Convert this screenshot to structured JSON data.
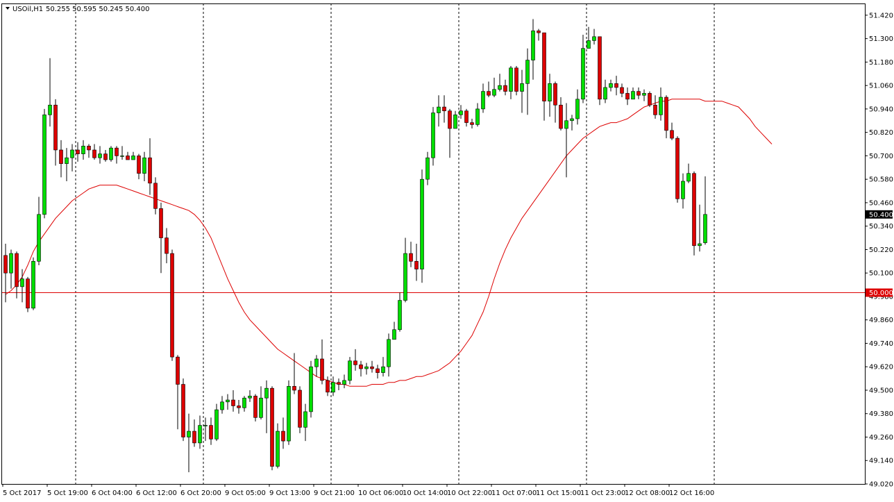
{
  "header": {
    "symbol": "USOil,H1",
    "ohlc": "50.255 50.595 50.245 50.400"
  },
  "colors": {
    "bull": "#00dd00",
    "bear": "#dd0000",
    "wick": "#000000",
    "ma": "#dd0000",
    "level": "#dd0000",
    "grid": "#000000",
    "background": "#ffffff"
  },
  "chart_data": {
    "type": "candlestick",
    "symbol": "USOil",
    "timeframe": "H1",
    "ylim": [
      49.02,
      51.48
    ],
    "price_ticks": [
      "51.420",
      "51.300",
      "51.180",
      "51.060",
      "50.940",
      "50.820",
      "50.700",
      "50.580",
      "50.460",
      "50.340",
      "50.220",
      "50.100",
      "49.980",
      "49.860",
      "49.740",
      "49.620",
      "49.500",
      "49.380",
      "49.260",
      "49.140",
      "49.020"
    ],
    "time_labels": [
      "5 Oct 2017",
      "5 Oct 19:00",
      "6 Oct 04:00",
      "6 Oct 12:00",
      "6 Oct 20:00",
      "9 Oct 05:00",
      "9 Oct 13:00",
      "9 Oct 21:00",
      "10 Oct 06:00",
      "10 Oct 14:00",
      "10 Oct 22:00",
      "11 Oct 07:00",
      "11 Oct 15:00",
      "11 Oct 23:00",
      "12 Oct 08:00",
      "12 Oct 16:00"
    ],
    "day_separators": [
      "6 Oct",
      "9 Oct",
      "10 Oct",
      "11 Oct",
      "12 Oct"
    ],
    "current_price": "50.400",
    "level": {
      "value": 50.0,
      "label": "50.000"
    },
    "ma": [
      49.99,
      50.01,
      50.04,
      50.08,
      50.14,
      50.21,
      50.26,
      50.3,
      50.34,
      50.38,
      50.41,
      50.44,
      50.47,
      50.49,
      50.51,
      50.53,
      50.54,
      50.55,
      50.55,
      50.55,
      50.55,
      50.54,
      50.53,
      50.52,
      50.51,
      50.5,
      50.49,
      50.48,
      50.47,
      50.46,
      50.45,
      50.44,
      50.43,
      50.42,
      50.4,
      50.37,
      50.33,
      50.28,
      50.21,
      50.14,
      50.07,
      50.01,
      49.95,
      49.9,
      49.86,
      49.83,
      49.8,
      49.77,
      49.74,
      49.71,
      49.69,
      49.67,
      49.65,
      49.63,
      49.61,
      49.59,
      49.57,
      49.56,
      49.55,
      49.54,
      49.53,
      49.53,
      49.52,
      49.52,
      49.52,
      49.52,
      49.53,
      49.53,
      49.53,
      49.54,
      49.54,
      49.55,
      49.55,
      49.56,
      49.57,
      49.57,
      49.58,
      49.59,
      49.6,
      49.62,
      49.64,
      49.67,
      49.7,
      49.74,
      49.78,
      49.84,
      49.9,
      49.98,
      50.07,
      50.15,
      50.22,
      50.28,
      50.33,
      50.38,
      50.42,
      50.46,
      50.5,
      50.54,
      50.58,
      50.62,
      50.66,
      50.7,
      50.73,
      50.76,
      50.79,
      50.81,
      50.83,
      50.85,
      50.86,
      50.87,
      50.87,
      50.88,
      50.89,
      50.91,
      50.93,
      50.95,
      50.96,
      50.97,
      50.98,
      50.98,
      50.99,
      50.99,
      50.99,
      50.99,
      50.99,
      50.99,
      50.98,
      50.98,
      50.98,
      50.98,
      50.97,
      50.96,
      50.95,
      50.92,
      50.89,
      50.85,
      50.82,
      50.79,
      50.76
    ],
    "candles": [
      [
        50.19,
        50.1,
        50.25,
        49.95
      ],
      [
        50.1,
        50.2,
        50.22,
        50.02
      ],
      [
        50.2,
        50.03,
        50.21,
        49.97
      ],
      [
        50.03,
        50.07,
        50.12,
        49.95
      ],
      [
        50.07,
        49.92,
        50.08,
        49.9
      ],
      [
        49.92,
        50.16,
        50.18,
        49.91
      ],
      [
        50.16,
        50.4,
        50.49,
        50.14
      ],
      [
        50.4,
        50.91,
        50.94,
        50.38
      ],
      [
        50.91,
        50.96,
        51.2,
        50.85
      ],
      [
        50.96,
        50.73,
        50.99,
        50.65
      ],
      [
        50.73,
        50.66,
        50.78,
        50.59
      ],
      [
        50.66,
        50.69,
        50.74,
        50.57
      ],
      [
        50.69,
        50.73,
        50.76,
        50.62
      ],
      [
        50.73,
        50.71,
        50.77,
        50.67
      ],
      [
        50.71,
        50.75,
        50.78,
        50.68
      ],
      [
        50.75,
        50.73,
        50.76,
        50.69
      ],
      [
        50.73,
        50.69,
        50.76,
        50.68
      ],
      [
        50.69,
        50.71,
        50.75,
        50.66
      ],
      [
        50.71,
        50.68,
        50.73,
        50.67
      ],
      [
        50.68,
        50.74,
        50.75,
        50.67
      ],
      [
        50.74,
        50.7,
        50.75,
        50.66
      ],
      [
        50.7,
        50.7,
        50.75,
        50.68
      ],
      [
        50.7,
        50.68,
        50.72,
        50.68
      ],
      [
        50.68,
        50.7,
        50.72,
        50.68
      ],
      [
        50.7,
        50.61,
        50.71,
        50.58
      ],
      [
        50.61,
        50.69,
        50.72,
        50.57
      ],
      [
        50.69,
        50.56,
        50.79,
        50.5
      ],
      [
        50.56,
        50.43,
        50.59,
        50.4
      ],
      [
        50.43,
        50.28,
        50.46,
        50.1
      ],
      [
        50.28,
        50.2,
        50.33,
        50.15
      ],
      [
        50.2,
        49.67,
        50.22,
        49.65
      ],
      [
        49.67,
        49.53,
        49.68,
        49.3
      ],
      [
        49.53,
        49.26,
        49.56,
        49.24
      ],
      [
        49.26,
        49.29,
        49.38,
        49.08
      ],
      [
        49.29,
        49.23,
        49.35,
        49.21
      ],
      [
        49.23,
        49.32,
        49.37,
        49.2
      ],
      [
        49.32,
        49.32,
        49.36,
        49.24
      ],
      [
        49.32,
        49.25,
        49.36,
        49.22
      ],
      [
        49.25,
        49.4,
        49.43,
        49.24
      ],
      [
        49.4,
        49.44,
        49.47,
        49.38
      ],
      [
        49.44,
        49.45,
        49.48,
        49.4
      ],
      [
        49.45,
        49.42,
        49.5,
        49.39
      ],
      [
        49.42,
        49.41,
        49.45,
        49.38
      ],
      [
        49.41,
        49.46,
        49.47,
        49.39
      ],
      [
        49.46,
        49.47,
        49.5,
        49.44
      ],
      [
        49.47,
        49.36,
        49.48,
        49.34
      ],
      [
        49.36,
        49.46,
        49.52,
        49.35
      ],
      [
        49.46,
        49.51,
        49.55,
        49.28
      ],
      [
        49.51,
        49.11,
        49.52,
        49.09
      ],
      [
        49.11,
        49.29,
        49.33,
        49.1
      ],
      [
        49.29,
        49.24,
        49.36,
        49.2
      ],
      [
        49.24,
        49.52,
        49.55,
        49.22
      ],
      [
        49.52,
        49.5,
        49.69,
        49.48
      ],
      [
        49.5,
        49.31,
        49.52,
        49.28
      ],
      [
        49.31,
        49.39,
        49.43,
        49.24
      ],
      [
        49.39,
        49.62,
        49.65,
        49.36
      ],
      [
        49.62,
        49.66,
        49.68,
        49.57
      ],
      [
        49.66,
        49.55,
        49.76,
        49.53
      ],
      [
        49.55,
        49.49,
        49.57,
        49.47
      ],
      [
        49.49,
        49.54,
        49.57,
        49.47
      ],
      [
        49.54,
        49.53,
        49.56,
        49.5
      ],
      [
        49.53,
        49.55,
        49.58,
        49.51
      ],
      [
        49.55,
        49.65,
        49.67,
        49.53
      ],
      [
        49.65,
        49.63,
        49.71,
        49.6
      ],
      [
        49.63,
        49.61,
        49.65,
        49.57
      ],
      [
        49.61,
        49.62,
        49.64,
        49.58
      ],
      [
        49.62,
        49.61,
        49.65,
        49.59
      ],
      [
        49.61,
        49.59,
        49.63,
        49.56
      ],
      [
        49.59,
        49.62,
        49.67,
        49.57
      ],
      [
        49.62,
        49.76,
        49.79,
        49.57
      ],
      [
        49.76,
        49.81,
        49.85,
        49.77
      ],
      [
        49.81,
        49.96,
        50.0,
        49.8
      ],
      [
        49.96,
        50.2,
        50.28,
        49.95
      ],
      [
        50.2,
        50.16,
        50.26,
        50.13
      ],
      [
        50.16,
        50.12,
        50.25,
        50.06
      ],
      [
        50.12,
        50.58,
        50.63,
        50.05
      ],
      [
        50.58,
        50.69,
        50.72,
        50.55
      ],
      [
        50.69,
        50.92,
        50.95,
        50.65
      ],
      [
        50.92,
        50.95,
        51.01,
        50.85
      ],
      [
        50.95,
        50.93,
        51.01,
        50.87
      ],
      [
        50.93,
        50.84,
        50.94,
        50.69
      ],
      [
        50.84,
        50.91,
        50.93,
        50.85
      ],
      [
        50.91,
        50.93,
        50.96,
        50.89
      ],
      [
        50.93,
        50.87,
        50.94,
        50.85
      ],
      [
        50.87,
        50.86,
        50.89,
        50.84
      ],
      [
        50.86,
        50.94,
        50.97,
        50.85
      ],
      [
        50.94,
        51.03,
        51.07,
        50.92
      ],
      [
        51.03,
        51.01,
        51.08,
        51.0
      ],
      [
        51.01,
        51.04,
        51.1,
        51.0
      ],
      [
        51.04,
        51.06,
        51.12,
        51.03
      ],
      [
        51.06,
        51.03,
        51.09,
        51.01
      ],
      [
        51.03,
        51.15,
        51.16,
        50.99
      ],
      [
        51.15,
        51.03,
        51.16,
        51.01
      ],
      [
        51.03,
        51.07,
        51.14,
        50.92
      ],
      [
        51.07,
        51.19,
        51.25,
        50.91
      ],
      [
        51.19,
        51.34,
        51.4,
        51.09
      ],
      [
        51.34,
        51.33,
        51.35,
        51.29
      ],
      [
        51.33,
        50.98,
        51.33,
        50.88
      ],
      [
        50.98,
        51.07,
        51.12,
        50.9
      ],
      [
        51.07,
        50.96,
        51.08,
        50.87
      ],
      [
        50.96,
        50.84,
        51.0,
        50.83
      ],
      [
        50.84,
        50.88,
        50.97,
        50.59
      ],
      [
        50.88,
        50.89,
        50.91,
        50.83
      ],
      [
        50.89,
        50.99,
        51.04,
        50.86
      ],
      [
        50.99,
        51.25,
        51.32,
        50.97
      ],
      [
        51.25,
        51.29,
        51.36,
        51.25
      ],
      [
        51.29,
        51.31,
        51.35,
        51.27
      ],
      [
        51.31,
        50.99,
        51.31,
        50.96
      ],
      [
        50.99,
        51.05,
        51.09,
        50.97
      ],
      [
        51.05,
        51.07,
        51.09,
        51.03
      ],
      [
        51.07,
        51.05,
        51.11,
        51.01
      ],
      [
        51.05,
        51.02,
        51.07,
        51.0
      ],
      [
        51.02,
        50.99,
        51.05,
        50.96
      ],
      [
        50.99,
        51.03,
        51.05,
        50.99
      ],
      [
        51.03,
        51.01,
        51.05,
        50.99
      ],
      [
        51.01,
        51.02,
        51.04,
        50.98
      ],
      [
        51.02,
        50.96,
        51.03,
        50.95
      ],
      [
        50.96,
        50.91,
        51.01,
        50.89
      ],
      [
        50.91,
        51.0,
        51.05,
        50.88
      ],
      [
        51.0,
        50.83,
        51.01,
        50.79
      ],
      [
        50.83,
        50.79,
        50.87,
        50.78
      ],
      [
        50.79,
        50.48,
        50.8,
        50.46
      ],
      [
        50.48,
        50.57,
        50.61,
        50.43
      ],
      [
        50.57,
        50.61,
        50.66,
        50.56
      ],
      [
        50.61,
        50.24,
        50.62,
        50.19
      ],
      [
        50.24,
        50.25,
        50.45,
        50.21
      ],
      [
        50.255,
        50.4,
        50.595,
        50.245
      ]
    ]
  }
}
